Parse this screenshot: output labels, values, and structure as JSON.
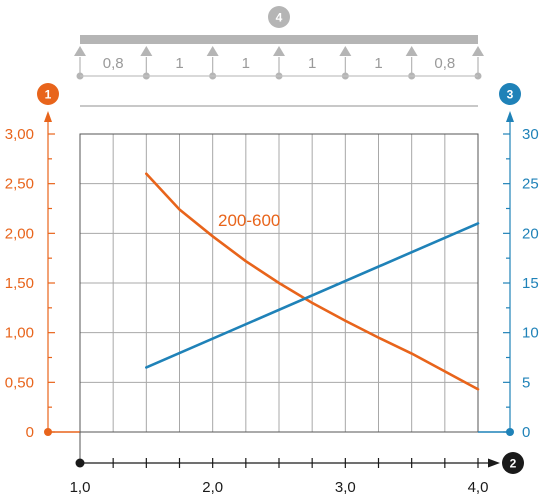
{
  "chart_data": {
    "type": "line",
    "markers": {
      "left_axis": "1",
      "right_axis": "3",
      "x_axis": "2",
      "beam": "4"
    },
    "x": {
      "min": 1.0,
      "max": 4.0,
      "ticks": [
        1.0,
        2.0,
        3.0,
        4.0
      ],
      "tick_labels": [
        "1,0",
        "2,0",
        "3,0",
        "4,0"
      ],
      "minor_step": 0.25
    },
    "y_left": {
      "min": 0,
      "max": 3.0,
      "ticks": [
        0,
        0.5,
        1.0,
        1.5,
        2.0,
        2.5,
        3.0
      ],
      "tick_labels": [
        "0",
        "0,50",
        "1,00",
        "1,50",
        "2,00",
        "2,50",
        "3,00"
      ],
      "color": "#e8641b"
    },
    "y_right": {
      "min": 0,
      "max": 30,
      "ticks": [
        0,
        5,
        10,
        15,
        20,
        25,
        30
      ],
      "tick_labels": [
        "0",
        "5",
        "10",
        "15",
        "20",
        "25",
        "30"
      ],
      "color": "#1f82b8"
    },
    "series": [
      {
        "name": "200-600",
        "axis": "left",
        "color": "#e8641b",
        "x": [
          1.5,
          1.75,
          2.0,
          2.25,
          2.5,
          2.75,
          3.0,
          3.25,
          3.5,
          3.75,
          4.0
        ],
        "y": [
          2.6,
          2.24,
          1.97,
          1.72,
          1.5,
          1.3,
          1.12,
          0.95,
          0.79,
          0.61,
          0.43
        ]
      },
      {
        "name": "",
        "axis": "right",
        "color": "#1f82b8",
        "x": [
          1.5,
          4.0
        ],
        "y": [
          6.5,
          21.0
        ]
      }
    ],
    "beam_spans": [
      "0,8",
      "1",
      "1",
      "1",
      "1",
      "0,8"
    ],
    "grid": true
  }
}
